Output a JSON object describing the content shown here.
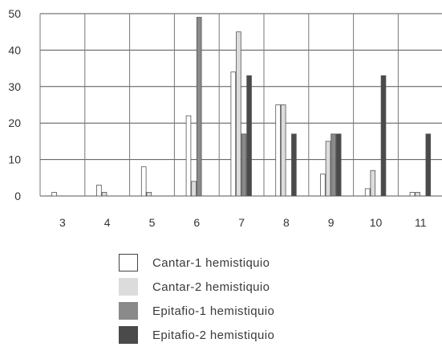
{
  "chart_data": {
    "type": "bar",
    "title": "",
    "xlabel": "",
    "ylabel": "",
    "categories": [
      "3",
      "4",
      "5",
      "6",
      "7",
      "8",
      "9",
      "10",
      "11"
    ],
    "ylim": [
      0,
      50
    ],
    "yticks": [
      "0",
      "10",
      "20",
      "30",
      "40",
      "50"
    ],
    "grid": true,
    "legend_position": "bottom",
    "series": [
      {
        "name": "Cantar-1 hemistiquio",
        "color": "#ffffff",
        "values": [
          1,
          3,
          8,
          22,
          34,
          25,
          6,
          2,
          1
        ]
      },
      {
        "name": "Cantar-2 hemistiquio",
        "color": "#dcdcdc",
        "values": [
          0,
          1,
          1,
          4,
          45,
          25,
          15,
          7,
          1
        ]
      },
      {
        "name": "Epitafio-1 hemistiquio",
        "color": "#8a8a8a",
        "values": [
          0,
          0,
          0,
          49,
          17,
          0,
          17,
          0,
          0
        ]
      },
      {
        "name": "Epitafio-2 hemistiquio",
        "color": "#4a4a4a",
        "values": [
          0,
          0,
          0,
          0,
          33,
          17,
          17,
          33,
          17
        ]
      }
    ]
  }
}
